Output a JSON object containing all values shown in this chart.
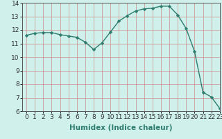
{
  "x": [
    0,
    1,
    2,
    3,
    4,
    5,
    6,
    7,
    8,
    9,
    10,
    11,
    12,
    13,
    14,
    15,
    16,
    17,
    18,
    19,
    20,
    21,
    22,
    23
  ],
  "y": [
    11.6,
    11.75,
    11.8,
    11.8,
    11.65,
    11.55,
    11.45,
    11.1,
    10.55,
    11.05,
    11.85,
    12.65,
    13.05,
    13.4,
    13.55,
    13.6,
    13.75,
    13.75,
    13.1,
    12.1,
    10.4,
    7.4,
    7.05,
    6.2
  ],
  "line_color": "#2e7d6e",
  "marker": "D",
  "markersize": 2.2,
  "linewidth": 1.0,
  "xlabel": "Humidex (Indice chaleur)",
  "xlabel_fontsize": 7.5,
  "xlabel_fontweight": "bold",
  "ylim": [
    6,
    14
  ],
  "xlim": [
    -0.5,
    23
  ],
  "yticks": [
    6,
    7,
    8,
    9,
    10,
    11,
    12,
    13,
    14
  ],
  "xticks": [
    0,
    1,
    2,
    3,
    4,
    5,
    6,
    7,
    8,
    9,
    10,
    11,
    12,
    13,
    14,
    15,
    16,
    17,
    18,
    19,
    20,
    21,
    22,
    23
  ],
  "bg_color": "#cff0eb",
  "grid_color": "#d08080",
  "tick_fontsize": 6.5,
  "spine_color": "#555555"
}
